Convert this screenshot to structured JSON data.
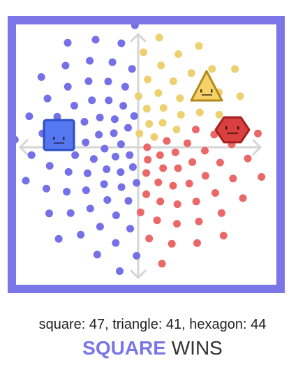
{
  "game": {
    "colors": {
      "frame": "#7a76e8",
      "square": "#5578f0",
      "triangle": "#f5d36a",
      "hexagon": "#d94040",
      "square_dots": "#7470e8",
      "triangle_dots": "#edd070",
      "hexagon_dots": "#ea6868",
      "axes": "#d6d6d6"
    },
    "players": [
      {
        "name": "square",
        "icon": "square-face-icon",
        "points": 47
      },
      {
        "name": "triangle",
        "icon": "triangle-face-icon",
        "points": 41
      },
      {
        "name": "hexagon",
        "icon": "hexagon-face-icon",
        "points": 44
      }
    ],
    "score_text": "square: 47, triangle: 41, hexagon: 44",
    "result": {
      "winner": "SQUARE",
      "suffix": "WINS",
      "winner_color": "#7a76e8"
    }
  }
}
